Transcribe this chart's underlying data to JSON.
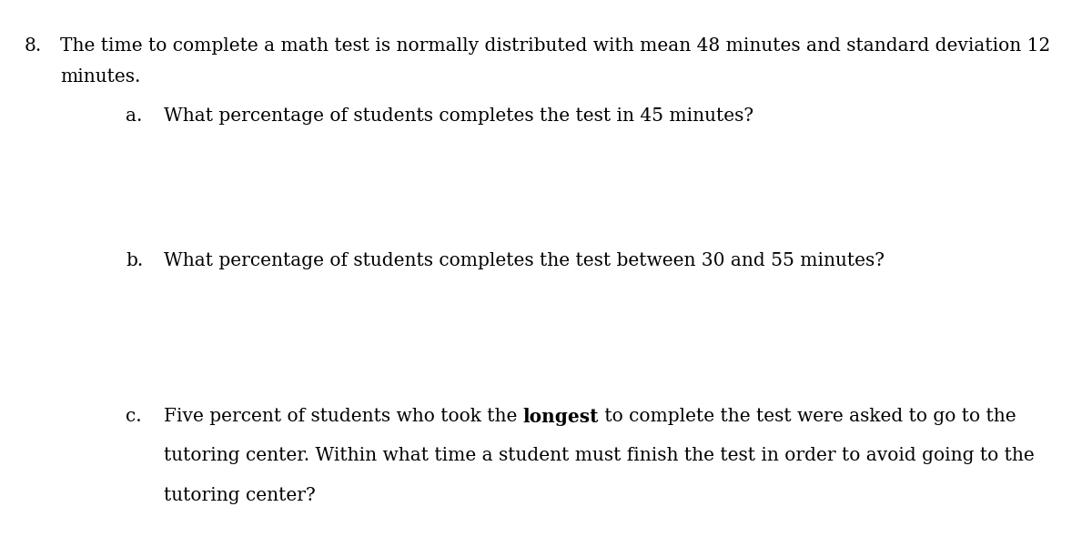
{
  "background_color": "#ffffff",
  "figsize": [
    12.0,
    5.9
  ],
  "dpi": 100,
  "main_number": "8.",
  "main_text_part1": "The time to complete a math test is normally distributed with mean 48 minutes and standard deviation 12",
  "main_text_part2": "minutes.",
  "item_a_label": "a.",
  "item_a_text": "What percentage of students completes the test in 45 minutes?",
  "item_b_label": "b.",
  "item_b_text": "What percentage of students completes the test between 30 and 55 minutes?",
  "item_c_label": "c.",
  "item_c_line1_before_bold": "Five percent of students who took the ",
  "item_c_bold": "longest",
  "item_c_line1_after_bold": " to complete the test were asked to go to the",
  "item_c_line2": "tutoring center. Within what time a student must finish the test in order to avoid going to the",
  "item_c_line3": "tutoring center?",
  "font_size": 14.5,
  "text_color": "#000000",
  "font_family": "DejaVu Serif"
}
